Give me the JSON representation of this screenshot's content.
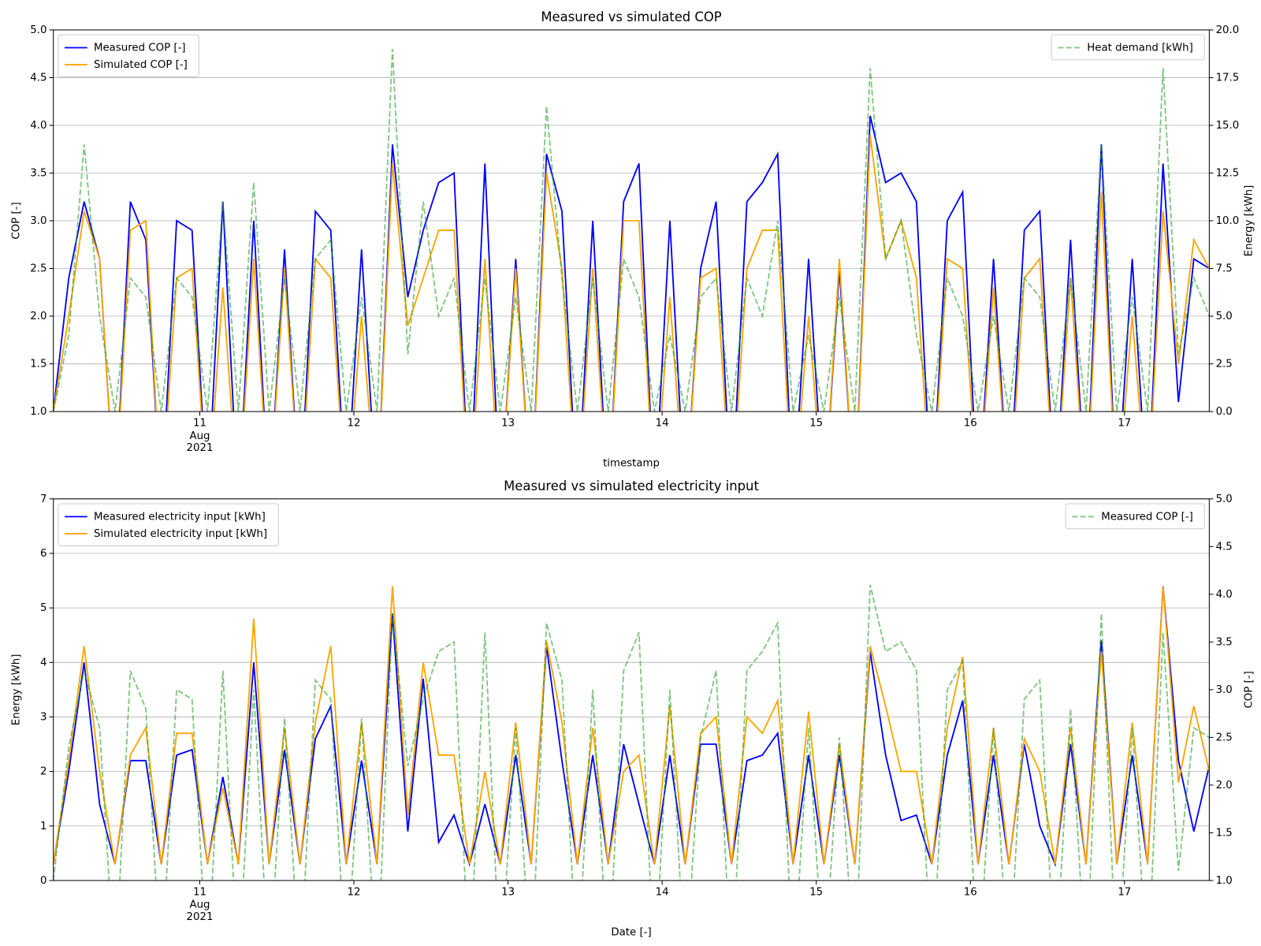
{
  "chart_data": [
    {
      "type": "line",
      "title": "Measured vs simulated COP",
      "xlabel": "timestamp",
      "ylabel": "COP [-]",
      "y2label": "Energy [kWh]",
      "x": [
        10.05,
        10.15,
        10.25,
        10.35,
        10.45,
        10.55,
        10.65,
        10.75,
        10.85,
        10.95,
        11.05,
        11.15,
        11.25,
        11.35,
        11.45,
        11.55,
        11.65,
        11.75,
        11.85,
        11.95,
        12.05,
        12.15,
        12.25,
        12.35,
        12.45,
        12.55,
        12.65,
        12.75,
        12.85,
        12.95,
        13.05,
        13.15,
        13.25,
        13.35,
        13.45,
        13.55,
        13.65,
        13.75,
        13.85,
        13.95,
        14.05,
        14.15,
        14.25,
        14.35,
        14.45,
        14.55,
        14.65,
        14.75,
        14.85,
        14.95,
        15.05,
        15.15,
        15.25,
        15.35,
        15.45,
        15.55,
        15.65,
        15.75,
        15.85,
        15.95,
        16.05,
        16.15,
        16.25,
        16.35,
        16.45,
        16.55,
        16.65,
        16.75,
        16.85,
        16.95,
        17.05,
        17.15,
        17.25,
        17.35,
        17.45,
        17.55
      ],
      "xlim": [
        10.05,
        17.55
      ],
      "xticks": [
        11,
        12,
        13,
        14,
        15,
        16,
        17
      ],
      "x_sublabels": [
        "Aug",
        "2021"
      ],
      "ylim": [
        1,
        5
      ],
      "yticks": [
        {
          "value": 1,
          "label": "1.0"
        },
        {
          "value": 1.5,
          "label": "1.5"
        },
        {
          "value": 2,
          "label": "2.0"
        },
        {
          "value": 2.5,
          "label": "2.5"
        },
        {
          "value": 3,
          "label": "3.0"
        },
        {
          "value": 3.5,
          "label": "3.5"
        },
        {
          "value": 4,
          "label": "4.0"
        },
        {
          "value": 4.5,
          "label": "4.5"
        },
        {
          "value": 5,
          "label": "5.0"
        }
      ],
      "y2lim": [
        0,
        20
      ],
      "y2ticks": [
        {
          "value": 0,
          "label": "0.0"
        },
        {
          "value": 2.5,
          "label": "2.5"
        },
        {
          "value": 5,
          "label": "5.0"
        },
        {
          "value": 7.5,
          "label": "7.5"
        },
        {
          "value": 10,
          "label": "10.0"
        },
        {
          "value": 12.5,
          "label": "12.5"
        },
        {
          "value": 15,
          "label": "15.0"
        },
        {
          "value": 17.5,
          "label": "17.5"
        },
        {
          "value": 20,
          "label": "20.0"
        }
      ],
      "grid": true,
      "legend": "upper left",
      "legend2": "upper right",
      "series": [
        {
          "name": "Measured COP [-]",
          "color": "#0000ff",
          "values": [
            1.0,
            2.4,
            3.2,
            2.6,
            0,
            3.2,
            2.8,
            0,
            3.0,
            2.9,
            0,
            3.2,
            0,
            3.0,
            0,
            2.7,
            0,
            3.1,
            2.9,
            0,
            2.7,
            0,
            3.8,
            2.2,
            2.9,
            3.4,
            3.5,
            0,
            3.6,
            0,
            2.6,
            0,
            3.7,
            3.1,
            0,
            3.0,
            0,
            3.2,
            3.6,
            0,
            3.0,
            0,
            2.5,
            3.2,
            0,
            3.2,
            3.4,
            3.7,
            0,
            2.6,
            0,
            2.5,
            0,
            4.1,
            3.4,
            3.5,
            3.2,
            0,
            3.0,
            3.3,
            0,
            2.6,
            0,
            2.9,
            3.1,
            0,
            2.8,
            0,
            3.8,
            0,
            2.6,
            0,
            3.6,
            1.1,
            2.6,
            2.5
          ]
        },
        {
          "name": "Simulated COP [-]",
          "color": "#ffa500",
          "values": [
            1.0,
            2.0,
            3.1,
            2.6,
            0,
            2.9,
            3.0,
            0,
            2.4,
            2.5,
            0,
            2.3,
            0,
            2.6,
            0,
            2.5,
            0,
            2.6,
            2.4,
            0,
            2.0,
            0,
            3.6,
            1.9,
            2.4,
            2.9,
            2.9,
            0,
            2.6,
            0,
            2.5,
            0,
            3.5,
            2.5,
            0,
            2.5,
            0,
            3.0,
            3.0,
            0,
            2.2,
            0,
            2.4,
            2.5,
            0,
            2.5,
            2.9,
            2.9,
            0,
            2.0,
            0,
            2.6,
            0,
            3.9,
            2.6,
            3.0,
            2.4,
            0,
            2.6,
            2.5,
            0,
            2.3,
            0,
            2.4,
            2.6,
            0,
            2.4,
            0,
            3.3,
            0,
            2.0,
            0,
            3.1,
            1.5,
            2.8,
            2.5
          ]
        },
        {
          "name": "Heat demand [kWh]",
          "color": "#2ca02c",
          "axis": "y2",
          "linestyle": "dashed",
          "values": [
            0,
            4,
            14,
            5,
            0,
            7,
            6,
            0,
            7,
            6,
            0,
            11,
            0,
            12,
            0,
            7,
            0,
            8,
            9,
            0,
            6,
            0,
            19,
            3,
            11,
            5,
            7,
            0,
            7,
            0,
            6,
            0,
            16,
            7,
            0,
            7,
            0,
            8,
            6,
            0,
            4,
            0,
            6,
            7,
            0,
            7,
            5,
            10,
            0,
            4,
            0,
            6,
            0,
            18,
            8,
            10,
            4,
            0,
            7,
            5,
            0,
            5,
            0,
            7,
            6,
            0,
            7,
            0,
            14,
            0,
            6,
            0,
            18,
            3,
            7,
            5
          ]
        }
      ]
    },
    {
      "type": "line",
      "title": "Measured vs simulated electricity input",
      "xlabel": "Date [-]",
      "ylabel": "Energy [kWh]",
      "y2label": "COP [-]",
      "x": [
        10.05,
        10.15,
        10.25,
        10.35,
        10.45,
        10.55,
        10.65,
        10.75,
        10.85,
        10.95,
        11.05,
        11.15,
        11.25,
        11.35,
        11.45,
        11.55,
        11.65,
        11.75,
        11.85,
        11.95,
        12.05,
        12.15,
        12.25,
        12.35,
        12.45,
        12.55,
        12.65,
        12.75,
        12.85,
        12.95,
        13.05,
        13.15,
        13.25,
        13.35,
        13.45,
        13.55,
        13.65,
        13.75,
        13.85,
        13.95,
        14.05,
        14.15,
        14.25,
        14.35,
        14.45,
        14.55,
        14.65,
        14.75,
        14.85,
        14.95,
        15.05,
        15.15,
        15.25,
        15.35,
        15.45,
        15.55,
        15.65,
        15.75,
        15.85,
        15.95,
        16.05,
        16.15,
        16.25,
        16.35,
        16.45,
        16.55,
        16.65,
        16.75,
        16.85,
        16.95,
        17.05,
        17.15,
        17.25,
        17.35,
        17.45,
        17.55
      ],
      "xlim": [
        10.05,
        17.55
      ],
      "xticks": [
        11,
        12,
        13,
        14,
        15,
        16,
        17
      ],
      "x_sublabels": [
        "Aug",
        "2021"
      ],
      "ylim": [
        0,
        7
      ],
      "yticks": [
        0,
        1,
        2,
        3,
        4,
        5,
        6,
        7
      ],
      "y2lim": [
        1,
        5
      ],
      "y2ticks": [
        {
          "value": 1,
          "label": "1.0"
        },
        {
          "value": 1.5,
          "label": "1.5"
        },
        {
          "value": 2,
          "label": "2.0"
        },
        {
          "value": 2.5,
          "label": "2.5"
        },
        {
          "value": 3,
          "label": "3.0"
        },
        {
          "value": 3.5,
          "label": "3.5"
        },
        {
          "value": 4,
          "label": "4.0"
        },
        {
          "value": 4.5,
          "label": "4.5"
        },
        {
          "value": 5,
          "label": "5.0"
        }
      ],
      "grid": true,
      "legend": "upper left",
      "legend2": "upper right",
      "series": [
        {
          "name": "Measured electricity input [kWh]",
          "color": "#0000ff",
          "values": [
            0.3,
            2.0,
            4.0,
            1.4,
            0.3,
            2.2,
            2.2,
            0.3,
            2.3,
            2.4,
            0.3,
            1.9,
            0.3,
            4.0,
            0.3,
            2.4,
            0.3,
            2.6,
            3.2,
            0.3,
            2.2,
            0.3,
            4.9,
            0.9,
            3.7,
            0.7,
            1.2,
            0.3,
            1.4,
            0.3,
            2.3,
            0.3,
            4.3,
            2.2,
            0.3,
            2.3,
            0.3,
            2.5,
            1.4,
            0.3,
            2.3,
            0.3,
            2.5,
            2.5,
            0.3,
            2.2,
            2.3,
            2.7,
            0.3,
            2.3,
            0.3,
            2.3,
            0.3,
            4.2,
            2.3,
            1.1,
            1.2,
            0.3,
            2.3,
            3.3,
            0.3,
            2.3,
            0.3,
            2.5,
            1.0,
            0.3,
            2.5,
            0.3,
            4.4,
            0.3,
            2.3,
            0.3,
            5.4,
            2.2,
            0.9,
            2.1
          ]
        },
        {
          "name": "Simulated electricity input [kWh]",
          "color": "#ffa500",
          "values": [
            0.3,
            2.2,
            4.3,
            2.0,
            0.3,
            2.3,
            2.8,
            0.3,
            2.7,
            2.7,
            0.3,
            1.7,
            0.3,
            4.8,
            0.3,
            2.8,
            0.3,
            2.9,
            4.3,
            0.3,
            2.9,
            0.3,
            5.4,
            1.2,
            4.0,
            2.3,
            2.3,
            0.3,
            2.0,
            0.3,
            2.9,
            0.3,
            4.4,
            2.9,
            0.3,
            2.8,
            0.3,
            2.0,
            2.3,
            0.3,
            3.2,
            0.3,
            2.7,
            3.0,
            0.3,
            3.0,
            2.7,
            3.3,
            0.3,
            3.1,
            0.3,
            2.5,
            0.3,
            4.3,
            3.2,
            2.0,
            2.0,
            0.3,
            2.8,
            4.1,
            0.3,
            2.8,
            0.3,
            2.6,
            2.0,
            0.3,
            2.8,
            0.3,
            4.2,
            0.3,
            2.9,
            0.3,
            5.4,
            1.8,
            3.2,
            2.0
          ]
        },
        {
          "name": "Measured COP [-]",
          "color": "#2ca02c",
          "axis": "y2",
          "linestyle": "dashed",
          "values": [
            1.0,
            2.4,
            3.2,
            2.6,
            0,
            3.2,
            2.8,
            0,
            3.0,
            2.9,
            0,
            3.2,
            0,
            3.0,
            0,
            2.7,
            0,
            3.1,
            2.9,
            0,
            2.7,
            0,
            3.8,
            2.2,
            2.9,
            3.4,
            3.5,
            0,
            3.6,
            0,
            2.6,
            0,
            3.7,
            3.1,
            0,
            3.0,
            0,
            3.2,
            3.6,
            0,
            3.0,
            0,
            2.5,
            3.2,
            0,
            3.2,
            3.4,
            3.7,
            0,
            2.6,
            0,
            2.5,
            0,
            4.1,
            3.4,
            3.5,
            3.2,
            0,
            3.0,
            3.3,
            0,
            2.6,
            0,
            2.9,
            3.1,
            0,
            2.8,
            0,
            3.8,
            0,
            2.6,
            0,
            3.6,
            1.1,
            2.6,
            2.5
          ]
        }
      ]
    }
  ]
}
